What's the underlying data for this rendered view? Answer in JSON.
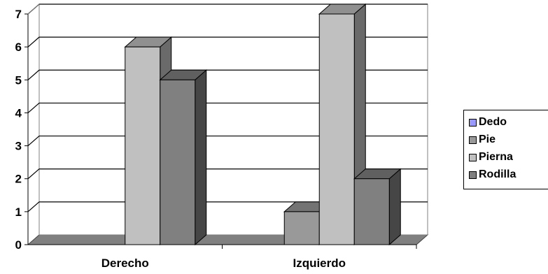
{
  "chart_data": {
    "type": "bar",
    "title": "",
    "xlabel": "",
    "ylabel": "",
    "categories": [
      "Derecho",
      "Izquierdo"
    ],
    "series": [
      {
        "name": "Dedo",
        "values": [
          0,
          0
        ],
        "color": "#9999ff"
      },
      {
        "name": "Pie",
        "values": [
          0,
          1
        ],
        "color": "#999999"
      },
      {
        "name": "Pierna",
        "values": [
          6,
          7
        ],
        "color": "#c0c0c0"
      },
      {
        "name": "Rodilla",
        "values": [
          5,
          2
        ],
        "color": "#808080"
      }
    ],
    "ylim": [
      0,
      7
    ],
    "yticks": [
      "0",
      "1",
      "2",
      "3",
      "4",
      "5",
      "6",
      "7"
    ],
    "grid": true,
    "legend": "right",
    "style": "3d-column"
  }
}
